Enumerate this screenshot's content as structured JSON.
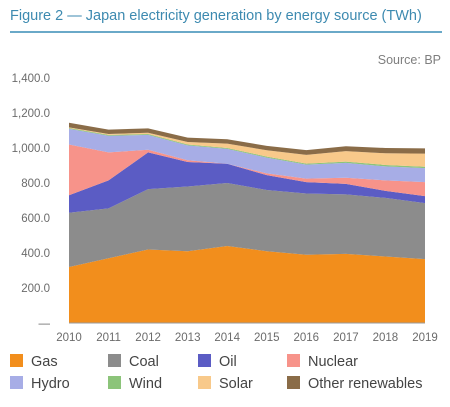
{
  "figure": {
    "title": "Figure 2 — Japan electricity generation by energy source (TWh)",
    "source": "Source: BP"
  },
  "chart_data": {
    "type": "area",
    "stacked": true,
    "title": "Figure 2 — Japan electricity generation by energy source (TWh)",
    "xlabel": "",
    "ylabel": "",
    "x": [
      2010,
      2011,
      2012,
      2013,
      2014,
      2015,
      2016,
      2017,
      2018,
      2019
    ],
    "ylim": [
      0,
      1400
    ],
    "y_ticks": [
      "—",
      "200.0",
      "400.0",
      "600.0",
      "800.0",
      "1,000.0",
      "1,200.0",
      "1,400.0"
    ],
    "y_tick_values": [
      0,
      200,
      400,
      600,
      800,
      1000,
      1200,
      1400
    ],
    "grid": false,
    "legend_position": "bottom",
    "series": [
      {
        "name": "Gas",
        "color": "#f28e1c",
        "values": [
          320,
          370,
          420,
          410,
          440,
          410,
          390,
          395,
          380,
          365
        ]
      },
      {
        "name": "Coal",
        "color": "#8c8c8c",
        "values": [
          310,
          285,
          345,
          370,
          360,
          350,
          350,
          340,
          335,
          320
        ]
      },
      {
        "name": "Oil",
        "color": "#5b5cc4",
        "values": [
          100,
          160,
          210,
          140,
          110,
          85,
          65,
          60,
          40,
          40
        ]
      },
      {
        "name": "Nuclear",
        "color": "#f7938a",
        "values": [
          290,
          160,
          15,
          10,
          0,
          10,
          20,
          35,
          60,
          80
        ]
      },
      {
        "name": "Hydro",
        "color": "#a7ade6",
        "values": [
          90,
          95,
          85,
          85,
          85,
          90,
          80,
          85,
          80,
          80
        ]
      },
      {
        "name": "Wind",
        "color": "#8cc47a",
        "values": [
          4,
          5,
          5,
          5,
          5,
          6,
          6,
          7,
          8,
          8
        ]
      },
      {
        "name": "Solar",
        "color": "#f8c98a",
        "values": [
          4,
          5,
          7,
          14,
          25,
          36,
          50,
          60,
          67,
          75
        ]
      },
      {
        "name": "Other renewables",
        "color": "#8a6c48",
        "values": [
          26,
          25,
          25,
          25,
          25,
          25,
          27,
          28,
          30,
          30
        ]
      }
    ]
  },
  "legend": [
    "Gas",
    "Coal",
    "Oil",
    "Nuclear",
    "Hydro",
    "Wind",
    "Solar",
    "Other renewables"
  ]
}
